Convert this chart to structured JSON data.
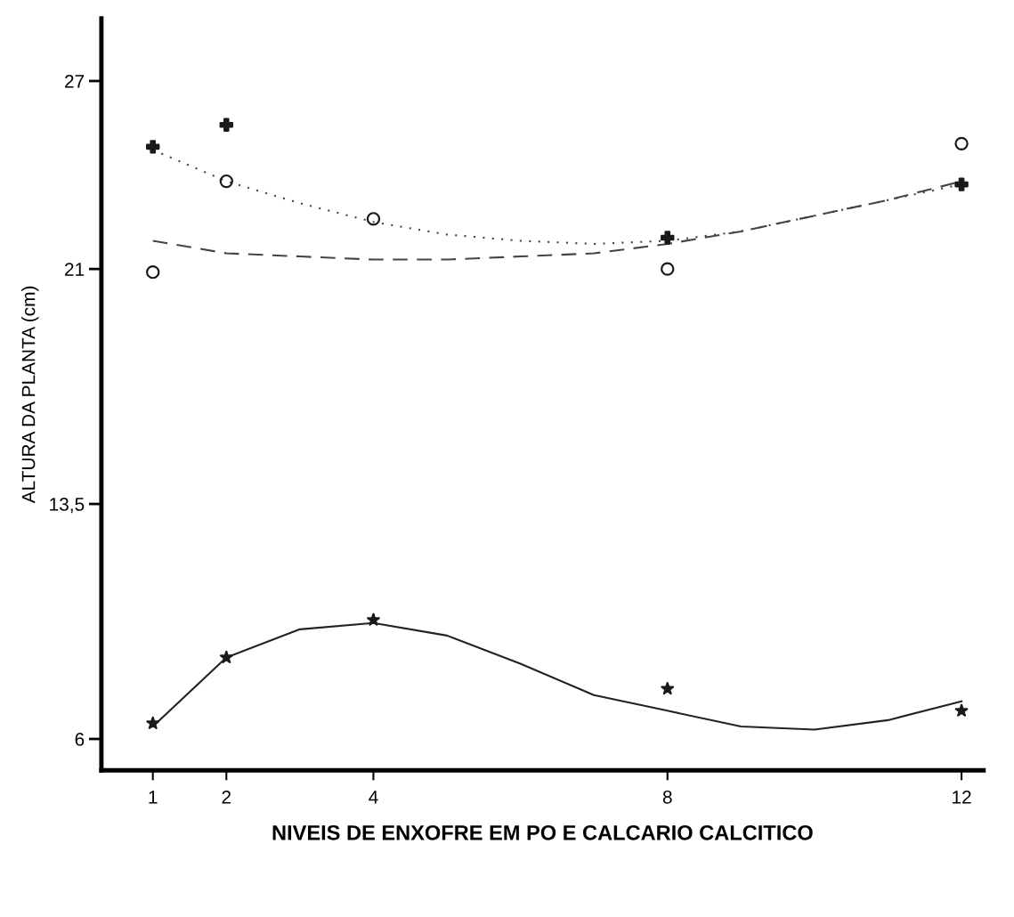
{
  "chart_data": {
    "type": "scatter",
    "xlabel": "NIVEIS DE ENXOFRE EM PO E CALCARIO CALCITICO",
    "ylabel": "ALTURA DA PLANTA (cm)",
    "x": [
      1,
      2,
      4,
      8,
      12
    ],
    "xlim": [
      0.3,
      12.3
    ],
    "xticks": [
      1,
      2,
      4,
      8,
      12
    ],
    "ylim": [
      5,
      29
    ],
    "yticks": [
      6,
      {
        "value": 13.5,
        "label": "13,5"
      },
      21,
      27
    ],
    "grid": false,
    "legend": false,
    "series": [
      {
        "color": "#1a1a1a",
        "marker": "cross",
        "x": [
          1,
          2,
          8,
          12
        ],
        "values": [
          24.9,
          25.6,
          22.0,
          23.7
        ]
      },
      {
        "color": "#1a1a1a",
        "marker": "circle",
        "values": [
          20.9,
          23.8,
          22.6,
          21.0,
          25.0
        ]
      },
      {
        "color": "#1a1a1a",
        "marker": "star",
        "values": [
          6.5,
          8.6,
          9.8,
          7.6,
          6.9
        ]
      },
      {
        "type": "line",
        "color": "#444444",
        "line_style": "dotted",
        "x": [
          1,
          2,
          3,
          4,
          5,
          6,
          7,
          8,
          9,
          10,
          11,
          12
        ],
        "values": [
          24.8,
          23.8,
          23.1,
          22.5,
          22.1,
          21.9,
          21.8,
          21.9,
          22.2,
          22.7,
          23.2,
          23.7
        ]
      },
      {
        "type": "line",
        "color": "#444444",
        "line_style": "dashed",
        "x": [
          1,
          2,
          3,
          4,
          5,
          6,
          7,
          8,
          9,
          10,
          11,
          12
        ],
        "values": [
          21.9,
          21.5,
          21.4,
          21.3,
          21.3,
          21.4,
          21.5,
          21.8,
          22.2,
          22.7,
          23.2,
          23.8
        ]
      },
      {
        "type": "line",
        "color": "#222222",
        "line_style": "solid",
        "x": [
          1,
          2,
          3,
          4,
          5,
          6,
          7,
          8,
          9,
          10,
          11,
          12
        ],
        "values": [
          6.4,
          8.6,
          9.5,
          9.7,
          9.3,
          8.4,
          7.4,
          6.9,
          6.4,
          6.3,
          6.6,
          7.2
        ]
      }
    ]
  }
}
